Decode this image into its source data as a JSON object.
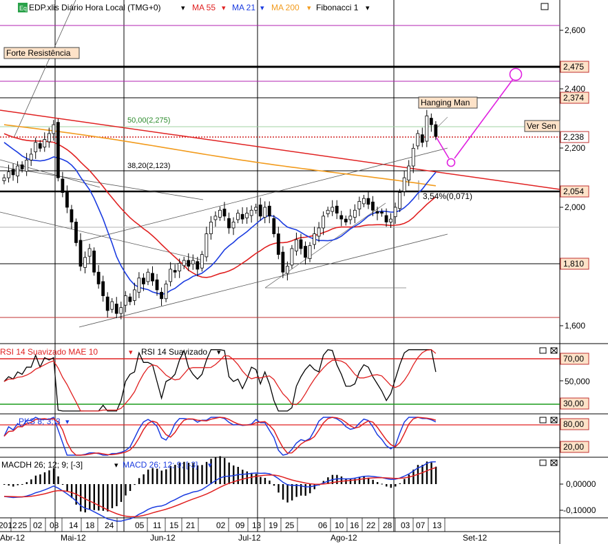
{
  "header": {
    "symbol": "EDP.xlis Diário Hora Local (TMG+0)",
    "badge": "Eq",
    "indicators": [
      {
        "label": "MA 55",
        "color": "#e02020"
      },
      {
        "label": "MA 21",
        "color": "#1a3be0"
      },
      {
        "label": "MA 200",
        "color": "#f29b1d"
      },
      {
        "label": "Fibonacci 1",
        "color": "#000000"
      }
    ]
  },
  "annotations": {
    "forte_resistencia": "Forte Resistência",
    "hanging_man": "Hanging Man",
    "ver_sen": "Ver Sen",
    "fib_50": "50,00(2,275)",
    "fib_382": "38,20(2,123)",
    "fib_pct": "3,54%(0,071)"
  },
  "price_labels": {
    "boxed": [
      "2,475",
      "2,374",
      "2,238",
      "2,054",
      "1,810"
    ],
    "axis": [
      "2,600",
      "2,400",
      "2,200",
      "2,000",
      "1,600"
    ]
  },
  "rsi_panel": {
    "label_a": "RSI 14 Suavizado MAE 10",
    "label_b": "RSI 14 Suavizado",
    "boxed": [
      "70,00",
      "30,00"
    ],
    "axis": [
      "50,000"
    ]
  },
  "pks_panel": {
    "label": "PKS 8; 3; 3",
    "boxed": [
      "80,00",
      "20,00"
    ]
  },
  "macd_panel": {
    "label_a": "MACDH 26; 12; 9; [-3]",
    "label_b": "MACD 26; 12; 9; [-3]",
    "axis": [
      "0,00000",
      "-0,10000"
    ]
  },
  "x_axis": {
    "days": [
      "2012",
      "25",
      "02",
      "08",
      "14",
      "18",
      "24",
      "05",
      "11",
      "15",
      "21",
      "02",
      "09",
      "13",
      "19",
      "25",
      "06",
      "10",
      "16",
      "22",
      "28",
      "03",
      "07",
      "13"
    ],
    "months": [
      "Abr-12",
      "Mai-12",
      "Jun-12",
      "Jul-12",
      "Ago-12",
      "Set-12"
    ]
  },
  "chart_data": [
    {
      "type": "candlestick",
      "series": [
        {
          "name": "MA 55",
          "color": "#e02020"
        },
        {
          "name": "MA 21",
          "color": "#1a3be0"
        },
        {
          "name": "MA 200",
          "color": "#f29b1d"
        }
      ],
      "ylim": [
        1.54,
        2.71
      ],
      "yticks": [
        1.6,
        2.0,
        2.2,
        2.4,
        2.6
      ],
      "levels": [
        2.475,
        2.374,
        2.238,
        2.054,
        1.81
      ],
      "fibonacci": [
        {
          "label": "50,00(2,275)",
          "value": 2.275
        },
        {
          "label": "38,20(2,123)",
          "value": 2.123
        }
      ],
      "close": [
        2.1,
        2.12,
        2.11,
        2.14,
        2.13,
        2.16,
        2.18,
        2.22,
        2.2,
        2.23,
        2.25,
        2.28,
        2.1,
        2.05,
        2.0,
        1.95,
        1.88,
        1.8,
        1.83,
        1.86,
        1.78,
        1.74,
        1.7,
        1.65,
        1.68,
        1.64,
        1.66,
        1.7,
        1.68,
        1.72,
        1.76,
        1.74,
        1.78,
        1.75,
        1.72,
        1.69,
        1.74,
        1.79,
        1.78,
        1.81,
        1.82,
        1.8,
        1.82,
        1.79,
        1.84,
        1.91,
        1.95,
        1.97,
        1.99,
        1.97,
        1.93,
        1.95,
        1.98,
        1.96,
        1.98,
        1.99,
        2.0,
        1.97,
        2.0,
        1.97,
        1.91,
        1.84,
        1.78,
        1.8,
        1.86,
        1.89,
        1.86,
        1.83,
        1.87,
        1.91,
        1.93,
        1.97,
        1.99,
        2.0,
        1.98,
        1.96,
        1.95,
        1.97,
        1.99,
        2.02,
        2.03,
        2.01,
        1.99,
        1.98,
        1.98,
        1.95,
        1.96,
        2.0,
        2.05,
        2.1,
        2.14,
        2.2,
        2.25,
        2.22,
        2.31,
        2.28,
        2.24
      ]
    },
    {
      "type": "line",
      "name": "RSI 14 Suavizado",
      "ylim": [
        20,
        80
      ],
      "levels": [
        70,
        30
      ]
    },
    {
      "type": "line",
      "name": "PKS 8; 3; 3",
      "ylim": [
        0,
        100
      ],
      "levels": [
        80,
        20
      ]
    },
    {
      "type": "bar",
      "name": "MACD 26; 12; 9",
      "ylim": [
        -0.12,
        0.08
      ]
    }
  ]
}
